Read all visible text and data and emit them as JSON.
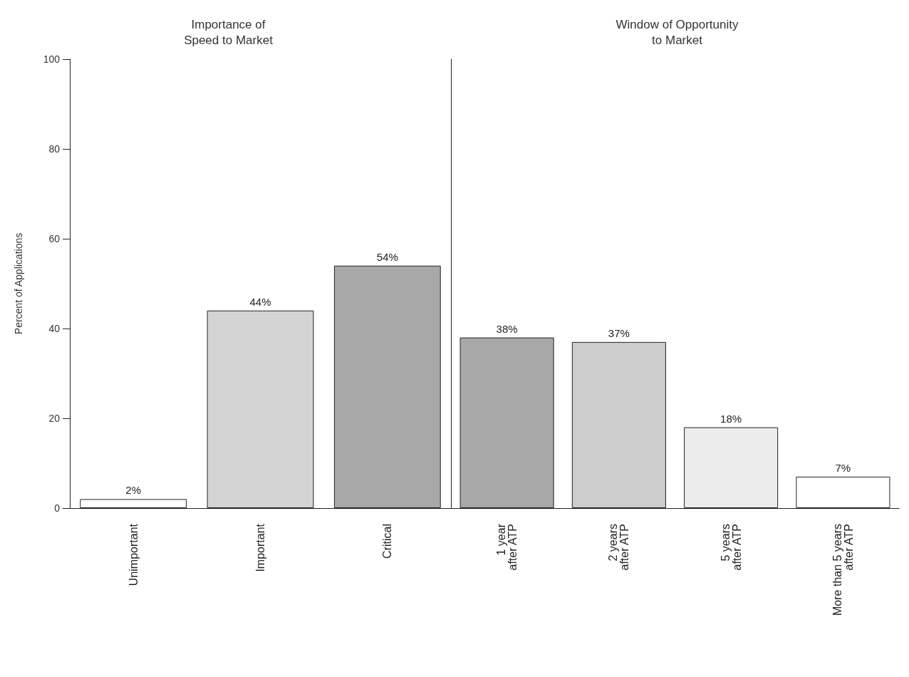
{
  "chart_data": [
    {
      "type": "bar",
      "title": "Importance of\nSpeed to Market",
      "ylabel": "Percent of Applications",
      "categories": [
        "Unimportant",
        "Important",
        "Critical"
      ],
      "values": [
        2,
        44,
        54
      ],
      "value_labels": [
        "2%",
        "44%",
        "54%"
      ],
      "colors": [
        "#ffffff",
        "#d4d4d4",
        "#a8a8a8"
      ],
      "ylim": [
        0,
        100
      ],
      "yticks": [
        0,
        20,
        40,
        60,
        80,
        100
      ],
      "grid": false
    },
    {
      "type": "bar",
      "title": "Window of Opportunity\nto Market",
      "categories": [
        "1 year\nafter ATP",
        "2 years\nafter ATP",
        "5 years\nafter ATP",
        "More than 5 years\nafter ATP"
      ],
      "values": [
        38,
        37,
        18,
        7
      ],
      "value_labels": [
        "38%",
        "37%",
        "18%",
        "7%"
      ],
      "colors": [
        "#a8a8a8",
        "#cccccc",
        "#ebebeb",
        "#ffffff"
      ],
      "ylim": [
        0,
        100
      ],
      "yticks": [
        0,
        20,
        40,
        60,
        80,
        100
      ],
      "tick_labels": "x",
      "grid": false
    }
  ]
}
